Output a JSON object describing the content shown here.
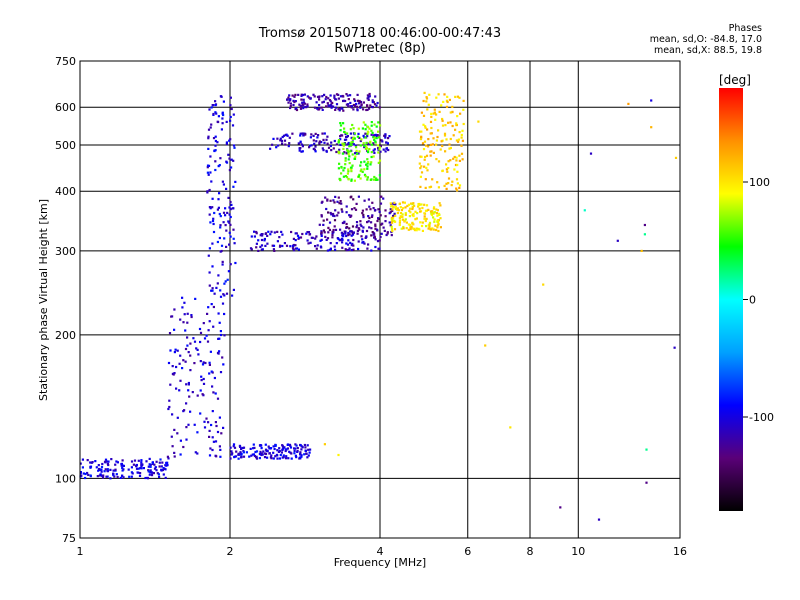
{
  "header": {
    "title_line1": "Tromsø 20150718 00:46:00-00:47:43",
    "title_line2": "RwPretec (8p)",
    "stats_label": "Phases",
    "stats_o": "mean, sd,O: -84.8, 17.0",
    "stats_x": "mean, sd,X: 88.5, 19.8"
  },
  "chart_data": {
    "type": "scatter",
    "title": "Tromsø 20150718 00:46:00-00:47:43",
    "subtitle": "RwPretec (8p)",
    "xlabel": "Frequency [MHz]",
    "ylabel": "Stationary phase Virtual Height [km]",
    "x_scale": "log",
    "y_scale": "log",
    "xlim": [
      1,
      16
    ],
    "ylim": [
      75,
      750
    ],
    "x_ticks": [
      1,
      2,
      4,
      6,
      8,
      10,
      16
    ],
    "x_tick_labels": [
      "1",
      "2",
      "4",
      "6",
      "8",
      "10",
      "16"
    ],
    "y_ticks": [
      75,
      100,
      200,
      300,
      400,
      500,
      600,
      750
    ],
    "y_tick_labels": [
      "75",
      "100",
      "200",
      "300",
      "400",
      "500",
      "600",
      "750"
    ],
    "grid": true,
    "colorbar": {
      "label": "[deg]",
      "range": [
        -180,
        180
      ],
      "ticks": [
        100,
        0,
        -100
      ],
      "tick_labels": [
        "100",
        "0",
        "-100"
      ],
      "colors": [
        "#000000",
        "#5a0078",
        "#0000ff",
        "#00a0ff",
        "#00ffff",
        "#00ff00",
        "#ffff00",
        "#ff9000",
        "#ff0000"
      ]
    },
    "series": [
      {
        "name": "",
        "description_free_traces": [
          {
            "x_range": [
              1.0,
              1.5
            ],
            "y": [
              100,
              110
            ],
            "phase": -100
          },
          {
            "x_range": [
              1.5,
              1.95
            ],
            "y": [
              110,
              240
            ],
            "phase": -105
          },
          {
            "x_range": [
              1.8,
              2.05
            ],
            "y": [
              240,
              640
            ],
            "phase": -100
          },
          {
            "x_range": [
              2.0,
              2.9
            ],
            "y": [
              110,
              118
            ],
            "phase": -100
          },
          {
            "x_range": [
              2.2,
              4.0
            ],
            "y": [
              300,
              330
            ],
            "phase": -110
          },
          {
            "x_range": [
              2.4,
              4.2
            ],
            "y": [
              480,
              530
            ],
            "phase": -110
          },
          {
            "x_range": [
              2.6,
              4.0
            ],
            "y": [
              590,
              640
            ],
            "phase": -120
          },
          {
            "x_range": [
              3.0,
              4.3
            ],
            "y": [
              320,
              390
            ],
            "phase": -125
          },
          {
            "x_range": [
              3.3,
              4.0
            ],
            "y": [
              420,
              560
            ],
            "phase": 60
          },
          {
            "x_range": [
              4.2,
              5.3
            ],
            "y": [
              330,
              380
            ],
            "phase": 100
          },
          {
            "x_range": [
              4.8,
              5.9
            ],
            "y": [
              400,
              650
            ],
            "phase": 110
          }
        ]
      }
    ],
    "points": [
      {
        "x": 3.1,
        "y": 118,
        "phase": 110
      },
      {
        "x": 3.3,
        "y": 112,
        "phase": 95
      },
      {
        "x": 6.3,
        "y": 560,
        "phase": 105
      },
      {
        "x": 6.5,
        "y": 190,
        "phase": 110
      },
      {
        "x": 7.3,
        "y": 128,
        "phase": 100
      },
      {
        "x": 8.5,
        "y": 255,
        "phase": 105
      },
      {
        "x": 9.2,
        "y": 87,
        "phase": -130
      },
      {
        "x": 10.3,
        "y": 365,
        "phase": 10
      },
      {
        "x": 10.6,
        "y": 480,
        "phase": -110
      },
      {
        "x": 11.0,
        "y": 82,
        "phase": -110
      },
      {
        "x": 12.0,
        "y": 315,
        "phase": -110
      },
      {
        "x": 12.6,
        "y": 610,
        "phase": 130
      },
      {
        "x": 13.4,
        "y": 300,
        "phase": 115
      },
      {
        "x": 13.6,
        "y": 340,
        "phase": -130
      },
      {
        "x": 13.6,
        "y": 325,
        "phase": 20
      },
      {
        "x": 13.7,
        "y": 115,
        "phase": 20
      },
      {
        "x": 13.7,
        "y": 98,
        "phase": -130
      },
      {
        "x": 14.0,
        "y": 620,
        "phase": -100
      },
      {
        "x": 14.0,
        "y": 545,
        "phase": 120
      },
      {
        "x": 15.6,
        "y": 188,
        "phase": -110
      },
      {
        "x": 15.7,
        "y": 470,
        "phase": 110
      }
    ]
  }
}
